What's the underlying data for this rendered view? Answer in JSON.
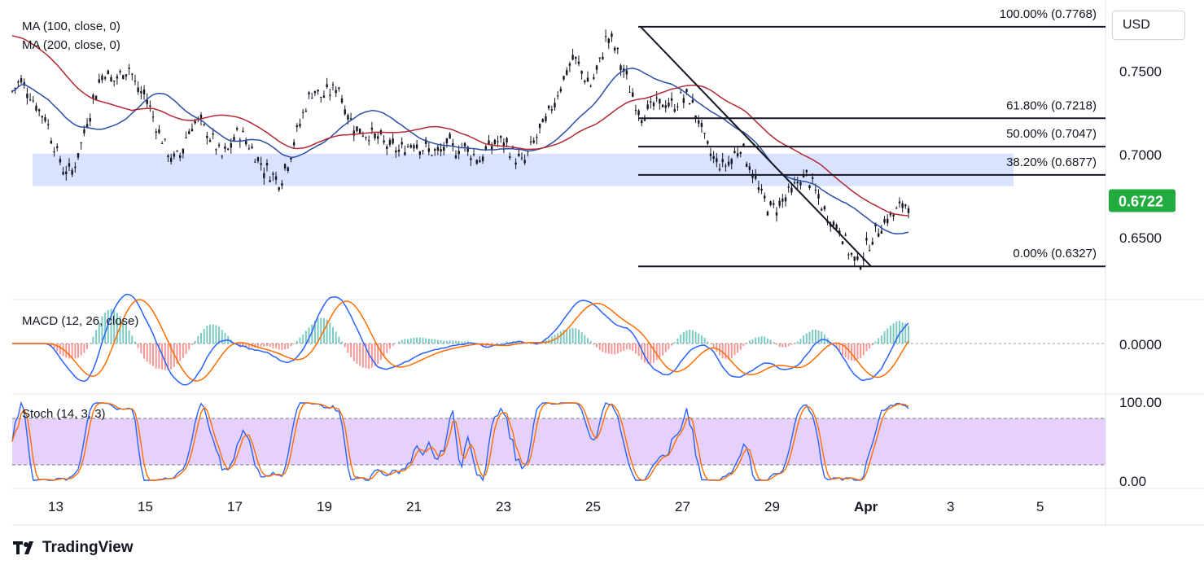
{
  "currency_label": "USD",
  "brand_name": "TradingView",
  "chart_data": {
    "type": "line",
    "last_price": "0.6722",
    "price_axis": {
      "ticks": [
        "0.7500",
        "0.7000",
        "0.6500"
      ],
      "values": [
        0.75,
        0.7,
        0.65
      ],
      "range": [
        0.624,
        0.789
      ]
    },
    "x_axis": {
      "labels": [
        "13",
        "15",
        "17",
        "19",
        "21",
        "23",
        "25",
        "27",
        "29",
        "Apr",
        "3",
        "5"
      ],
      "bold_label": "Apr"
    },
    "moving_averages": [
      {
        "label": "MA (100, close, 0)",
        "color": "#2a4ea5"
      },
      {
        "label": "MA (200, close, 0)",
        "color": "#b22833"
      }
    ],
    "support_zone": {
      "low": 0.681,
      "high": 0.7005,
      "color": "#c5d3ff"
    },
    "fibonacci": [
      {
        "label": "100.00% (0.7768)",
        "value": 0.7768
      },
      {
        "label": "61.80% (0.7218)",
        "value": 0.7218
      },
      {
        "label": "50.00% (0.7047)",
        "value": 0.7047
      },
      {
        "label": "38.20% (0.6877)",
        "value": 0.6877
      },
      {
        "label": "0.00% (0.6327)",
        "value": 0.6327
      }
    ],
    "trendline": {
      "from": {
        "date": "26",
        "price": 0.7768
      },
      "to": {
        "date": "Mar 31",
        "price": 0.6327
      }
    },
    "price_series": [
      0.738,
      0.745,
      0.738,
      0.728,
      0.722,
      0.706,
      0.692,
      0.688,
      0.702,
      0.721,
      0.738,
      0.751,
      0.744,
      0.748,
      0.753,
      0.738,
      0.735,
      0.72,
      0.708,
      0.697,
      0.699,
      0.714,
      0.721,
      0.715,
      0.708,
      0.698,
      0.704,
      0.714,
      0.708,
      0.7,
      0.692,
      0.688,
      0.684,
      0.697,
      0.713,
      0.729,
      0.74,
      0.734,
      0.738,
      0.741,
      0.724,
      0.716,
      0.713,
      0.712,
      0.708,
      0.705,
      0.702,
      0.704,
      0.709,
      0.704,
      0.702,
      0.7,
      0.706,
      0.703,
      0.705,
      0.7,
      0.697,
      0.705,
      0.708,
      0.706,
      0.699,
      0.694,
      0.705,
      0.714,
      0.723,
      0.736,
      0.748,
      0.758,
      0.75,
      0.741,
      0.752,
      0.772,
      0.764,
      0.75,
      0.736,
      0.724,
      0.727,
      0.73,
      0.731,
      0.729,
      0.735,
      0.733,
      0.72,
      0.703,
      0.696,
      0.693,
      0.698,
      0.706,
      0.694,
      0.68,
      0.67,
      0.667,
      0.673,
      0.677,
      0.685,
      0.687,
      0.676,
      0.665,
      0.659,
      0.654,
      0.64,
      0.634,
      0.644,
      0.652,
      0.66,
      0.663,
      0.668,
      0.672
    ],
    "indicators": [
      {
        "label": "MACD (12, 26, close)",
        "zero_label": "0.0000",
        "line_color": "#2962ff",
        "signal_color": "#ff6d00"
      },
      {
        "label": "Stoch (14, 3, 3)",
        "ticks": [
          "100.00",
          "0.00"
        ],
        "overbought": 80,
        "oversold": 20,
        "k_color": "#2962ff",
        "d_color": "#ff6d00",
        "band_color": "#e1c9fa"
      }
    ]
  }
}
